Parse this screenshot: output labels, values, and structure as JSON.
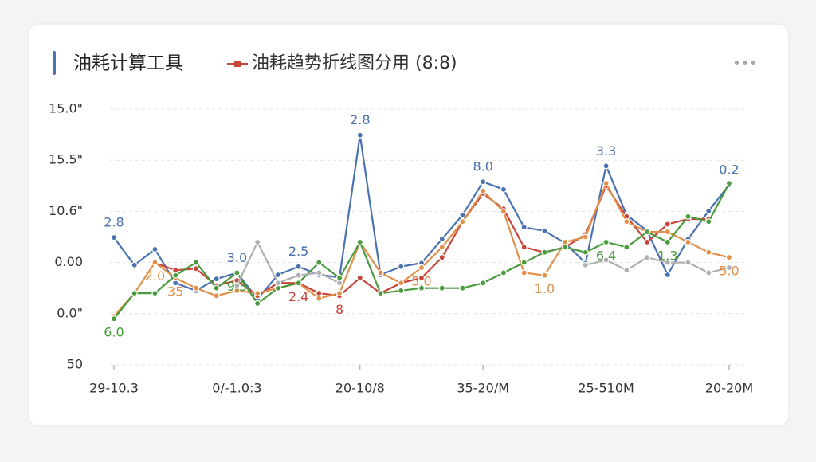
{
  "chart_data": {
    "type": "line",
    "title": "油耗计算工具",
    "subtitle": "油耗趋势折线图分用 (8:8)",
    "categories": [
      "29-10.3",
      null,
      null,
      null,
      null,
      null,
      "0/-1.0:3",
      null,
      null,
      null,
      null,
      null,
      "20-10/8",
      null,
      null,
      null,
      null,
      null,
      "35-20/M",
      null,
      null,
      null,
      null,
      null,
      "25-510M",
      null,
      null,
      null,
      null,
      null,
      "20-20M"
    ],
    "series": [
      {
        "color": "#4a72b0",
        "values": [
          2.49,
          1.95,
          2.26,
          1.6,
          1.45,
          1.68,
          1.8,
          1.29,
          1.76,
          1.92,
          1.76,
          1.71,
          4.49,
          1.76,
          1.92,
          1.99,
          2.46,
          2.93,
          3.58,
          3.43,
          2.69,
          2.62,
          2.38,
          1.99,
          3.89,
          2.93,
          2.62,
          1.76,
          2.46,
          3.01,
          3.52
        ]
      },
      {
        "color": "#c8453a",
        "values": [
          null,
          null,
          1.99,
          1.85,
          1.88,
          1.55,
          1.65,
          1.35,
          1.6,
          1.6,
          1.4,
          1.35,
          1.7,
          1.4,
          1.6,
          1.7,
          2.1,
          2.8,
          3.35,
          3.05,
          2.3,
          2.2,
          2.3,
          2.55,
          3.5,
          2.9,
          2.4,
          2.75,
          2.85,
          2.85,
          null
        ]
      },
      {
        "color": "#e0904a",
        "values": [
          0.95,
          1.4,
          2.0,
          1.7,
          1.5,
          1.35,
          1.45,
          1.4,
          1.5,
          1.6,
          1.3,
          1.4,
          2.4,
          1.8,
          1.6,
          1.9,
          2.3,
          2.8,
          3.4,
          3.0,
          1.8,
          1.75,
          2.4,
          2.5,
          3.55,
          2.8,
          2.6,
          2.6,
          2.4,
          2.2,
          2.1
        ]
      },
      {
        "color": "#4a9a3e",
        "values": [
          0.9,
          1.4,
          1.4,
          1.75,
          2.0,
          1.5,
          1.8,
          1.2,
          1.5,
          1.6,
          2.0,
          1.7,
          2.4,
          1.4,
          1.45,
          1.5,
          1.5,
          1.5,
          1.6,
          1.8,
          2.0,
          2.2,
          2.3,
          2.2,
          2.4,
          2.3,
          2.6,
          2.4,
          2.9,
          2.8,
          3.55
        ]
      },
      {
        "color": "#b0b0b0",
        "values": [
          null,
          null,
          null,
          null,
          null,
          null,
          1.55,
          2.4,
          1.6,
          1.75,
          1.8,
          1.6,
          null,
          null,
          null,
          null,
          null,
          null,
          null,
          null,
          null,
          null,
          null,
          1.95,
          2.05,
          1.85,
          2.1,
          2.0,
          2.0,
          1.8,
          1.9
        ]
      }
    ],
    "annotations": [
      {
        "text": "2.8",
        "series": 0,
        "index": 0
      },
      {
        "text": "6.0",
        "series": 3,
        "index": 0
      },
      {
        "text": "2.0",
        "series": 2,
        "index": 2
      },
      {
        "text": "35",
        "series": 2,
        "index": 3
      },
      {
        "text": "3.0",
        "series": 0,
        "index": 6
      },
      {
        "text": "9.3",
        "series": 3,
        "index": 6
      },
      {
        "text": "2.5",
        "series": 0,
        "index": 9
      },
      {
        "text": "2.4",
        "series": 1,
        "index": 9
      },
      {
        "text": "8",
        "series": 1,
        "index": 11
      },
      {
        "text": "2.8",
        "series": 0,
        "index": 12
      },
      {
        "text": "5.0",
        "series": 2,
        "index": 15
      },
      {
        "text": "8.0",
        "series": 0,
        "index": 18
      },
      {
        "text": "1.0",
        "series": 2,
        "index": 21
      },
      {
        "text": "3.3",
        "series": 0,
        "index": 24
      },
      {
        "text": "6.4",
        "series": 3,
        "index": 24
      },
      {
        "text": "1.3",
        "series": 3,
        "index": 27
      },
      {
        "text": "0.2",
        "series": 0,
        "index": 30
      },
      {
        "text": "5.0",
        "series": 2,
        "index": 30
      }
    ],
    "ylim": [
      0,
      5
    ],
    "yticks": [
      {
        "value": 0,
        "label": "50"
      },
      {
        "value": 1,
        "label": "0.0\""
      },
      {
        "value": 2,
        "label": "0.00"
      },
      {
        "value": 3,
        "label": "10.6\""
      },
      {
        "value": 4,
        "label": "15.5\""
      },
      {
        "value": 5,
        "label": "15.0\""
      }
    ],
    "grid": true
  }
}
